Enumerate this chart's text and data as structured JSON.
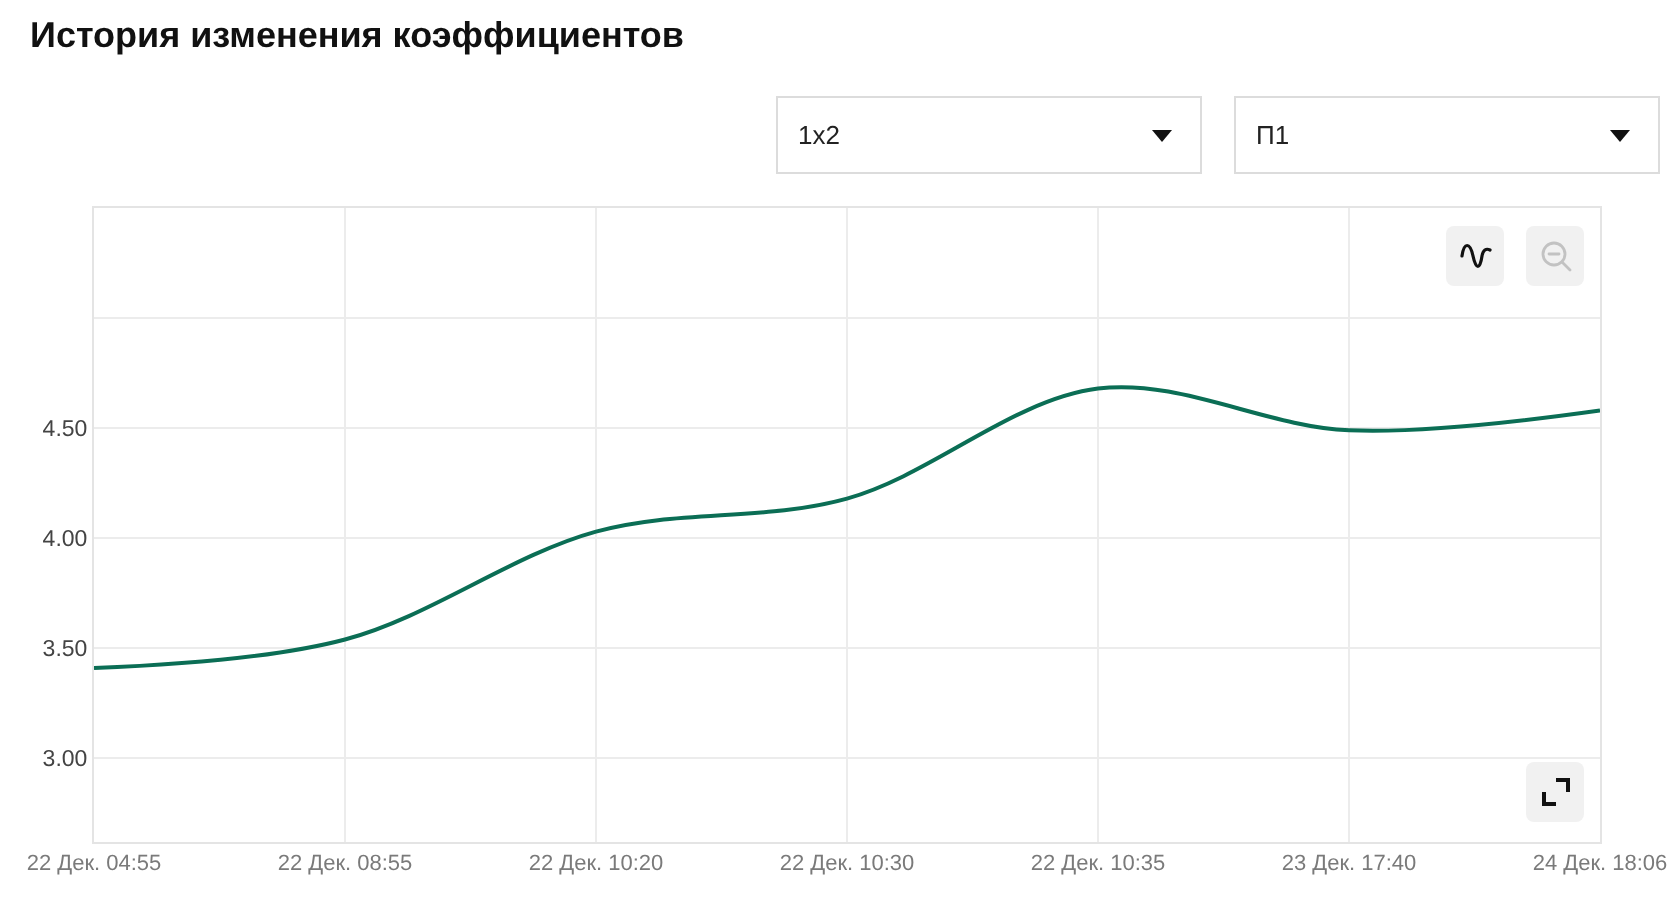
{
  "chart_data": {
    "type": "line",
    "title": "История изменения коэффициентов",
    "annotations": [
      "1x2",
      "П1"
    ],
    "categories": [
      "22 Дек. 04:55",
      "22 Дек. 08:55",
      "22 Дек. 10:20",
      "22 Дек. 10:30",
      "22 Дек. 10:35",
      "23 Дек. 17:40",
      "24 Дек. 18:06"
    ],
    "values": [
      3.41,
      3.54,
      4.03,
      4.18,
      4.68,
      4.49,
      4.58
    ],
    "color": "#0b6e55",
    "ylim": [
      2.62,
      5.5
    ],
    "yticks": [
      {
        "value": 3,
        "label": "3.00"
      },
      {
        "value": 3.5,
        "label": "3.50"
      },
      {
        "value": 4,
        "label": "4.00"
      },
      {
        "value": 4.5,
        "label": "4.50"
      },
      {
        "value": 5,
        "label": null
      }
    ],
    "grid": true,
    "line_style": "solid"
  }
}
